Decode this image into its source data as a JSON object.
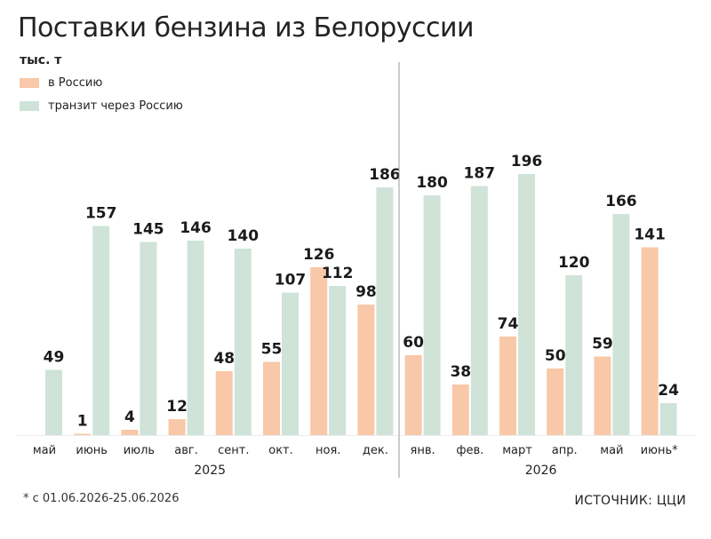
{
  "chart_data": {
    "type": "bar",
    "title": "Поставки бензина из Белоруссии",
    "ylabel": "тыс. т",
    "categories": [
      "май",
      "июнь",
      "июль",
      "авг.",
      "сент.",
      "окт.",
      "ноя.",
      "дек.",
      "янв.",
      "фев.",
      "март",
      "апр.",
      "май",
      "июнь*"
    ],
    "year_groups": [
      {
        "label": "2025",
        "from": 0,
        "to": 7
      },
      {
        "label": "2026",
        "from": 8,
        "to": 13
      }
    ],
    "series": [
      {
        "name": "в Россию",
        "color": "#f8c8a8",
        "values": [
          null,
          1,
          4,
          12,
          48,
          55,
          126,
          98,
          60,
          38,
          74,
          50,
          59,
          141
        ]
      },
      {
        "name": "транзит через Россию",
        "color": "#cfe3d8",
        "values": [
          49,
          157,
          145,
          146,
          140,
          107,
          112,
          186,
          180,
          187,
          196,
          120,
          166,
          24
        ]
      }
    ],
    "ylim": [
      0,
      200
    ],
    "grid": false,
    "legend": "top-left"
  },
  "footnote": "* с 01.06.2026-25.06.2026",
  "source": "ИСТОЧНИК: ЦЦИ"
}
